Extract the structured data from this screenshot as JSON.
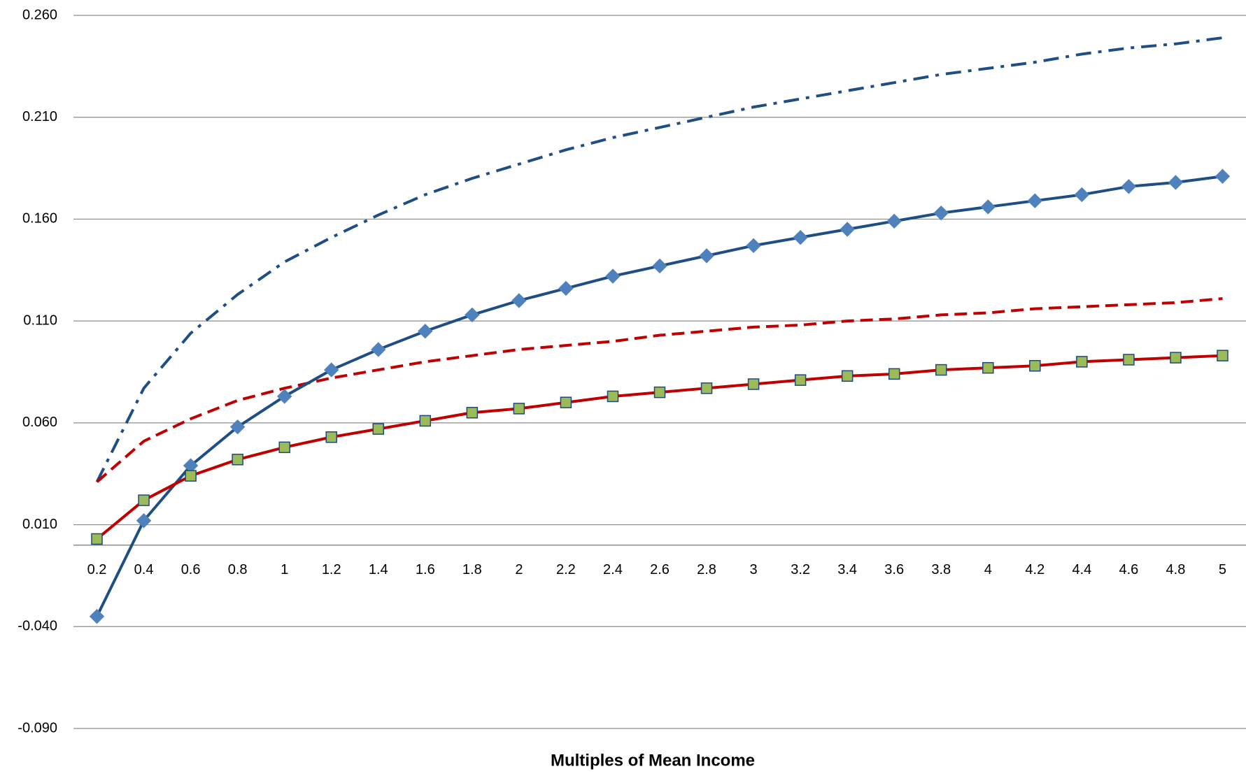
{
  "chart_data": {
    "type": "line",
    "x_label": "Multiples of Mean Income",
    "categories": [
      "0.2",
      "0.4",
      "0.6",
      "0.8",
      "1",
      "1.2",
      "1.4",
      "1.6",
      "1.8",
      "2",
      "2.2",
      "2.4",
      "2.6",
      "2.8",
      "3",
      "3.2",
      "3.4",
      "3.6",
      "3.8",
      "4",
      "4.2",
      "4.4",
      "4.6",
      "4.8",
      "5"
    ],
    "ylim": [
      -0.09,
      0.26
    ],
    "yticks": [
      {
        "value": -0.09,
        "label": "-0.090"
      },
      {
        "value": -0.04,
        "label": "-0.040"
      },
      {
        "value": 0.01,
        "label": "0.010"
      },
      {
        "value": 0.06,
        "label": "0.060"
      },
      {
        "value": 0.11,
        "label": "0.110"
      },
      {
        "value": 0.16,
        "label": "0.160"
      },
      {
        "value": 0.21,
        "label": "0.210"
      },
      {
        "value": 0.26,
        "label": "0.260"
      }
    ],
    "grid": true,
    "series": [
      {
        "color": "#1f4e85",
        "dash": "dash-dot",
        "marker": "none",
        "values": [
          0.031,
          0.077,
          0.104,
          0.123,
          0.139,
          0.151,
          0.162,
          0.172,
          0.18,
          0.187,
          0.194,
          0.2,
          0.205,
          0.21,
          0.215,
          0.219,
          0.223,
          0.227,
          0.231,
          0.234,
          0.237,
          0.241,
          0.244,
          0.246,
          0.249
        ]
      },
      {
        "color": "#c00000",
        "dash": "dashed",
        "marker": "none",
        "values": [
          0.031,
          0.051,
          0.062,
          0.071,
          0.077,
          0.082,
          0.086,
          0.09,
          0.093,
          0.096,
          0.098,
          0.1,
          0.103,
          0.105,
          0.107,
          0.108,
          0.11,
          0.111,
          0.113,
          0.114,
          0.116,
          0.117,
          0.118,
          0.119,
          0.121
        ]
      },
      {
        "color": "#1f4e85",
        "dash": "solid",
        "marker": "diamond",
        "marker_color": "#4f81bd",
        "values": [
          -0.035,
          0.012,
          0.039,
          0.058,
          0.073,
          0.086,
          0.096,
          0.105,
          0.113,
          0.12,
          0.126,
          0.132,
          0.137,
          0.142,
          0.147,
          0.151,
          0.155,
          0.159,
          0.163,
          0.166,
          0.169,
          0.172,
          0.176,
          0.178,
          0.181
        ]
      },
      {
        "color": "#c00000",
        "dash": "solid",
        "marker": "square",
        "marker_color": "#9bbb59",
        "values": [
          0.003,
          0.022,
          0.034,
          0.042,
          0.048,
          0.053,
          0.057,
          0.061,
          0.065,
          0.067,
          0.07,
          0.073,
          0.075,
          0.077,
          0.079,
          0.081,
          0.083,
          0.084,
          0.086,
          0.087,
          0.088,
          0.09,
          0.091,
          0.092,
          0.093
        ]
      }
    ]
  }
}
